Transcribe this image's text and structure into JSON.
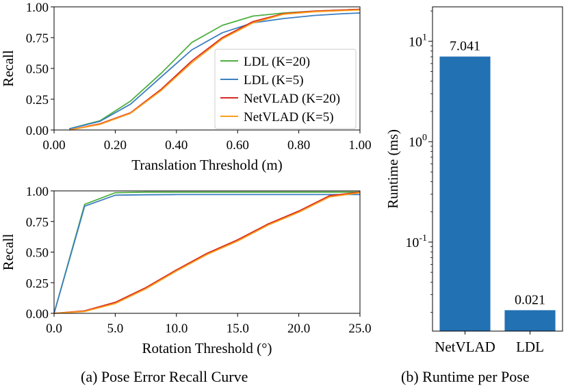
{
  "captions": {
    "a": "(a) Pose Error Recall Curve",
    "b": "(b) Runtime per Pose"
  },
  "chart_data": [
    {
      "type": "line",
      "id": "translation",
      "xlabel": "Translation Threshold (m)",
      "ylabel": "Recall",
      "xlim": [
        0.0,
        1.0
      ],
      "ylim": [
        0.0,
        1.0
      ],
      "xticks": [
        0.0,
        0.2,
        0.4,
        0.6,
        0.8,
        1.0
      ],
      "xtick_labels": [
        "0.00",
        "0.20",
        "0.40",
        "0.60",
        "0.80",
        "1.00"
      ],
      "yticks": [
        0.0,
        0.25,
        0.5,
        0.75,
        1.0
      ],
      "ytick_labels": [
        "0.00",
        "0.25",
        "0.50",
        "0.75",
        "1.00"
      ],
      "legend_position": "center-right",
      "series": [
        {
          "name": "LDL (K=20)",
          "color": "#4daf3f",
          "x": [
            0.05,
            0.15,
            0.25,
            0.35,
            0.45,
            0.55,
            0.65,
            0.75,
            0.85,
            0.95,
            1.0
          ],
          "y": [
            0.01,
            0.075,
            0.235,
            0.46,
            0.71,
            0.85,
            0.925,
            0.95,
            0.965,
            0.975,
            0.98
          ]
        },
        {
          "name": "LDL (K=5)",
          "color": "#3b7ec0",
          "x": [
            0.05,
            0.15,
            0.25,
            0.35,
            0.45,
            0.55,
            0.65,
            0.75,
            0.85,
            0.95,
            1.0
          ],
          "y": [
            0.01,
            0.07,
            0.21,
            0.43,
            0.65,
            0.79,
            0.87,
            0.905,
            0.93,
            0.945,
            0.95
          ]
        },
        {
          "name": "NetVLAD (K=20)",
          "color": "#d62b1f",
          "x": [
            0.05,
            0.15,
            0.25,
            0.35,
            0.45,
            0.55,
            0.65,
            0.75,
            0.85,
            0.95,
            1.0
          ],
          "y": [
            0.0,
            0.05,
            0.14,
            0.33,
            0.56,
            0.75,
            0.88,
            0.945,
            0.965,
            0.975,
            0.98
          ]
        },
        {
          "name": "NetVLAD (K=5)",
          "color": "#ff9e1b",
          "x": [
            0.05,
            0.15,
            0.25,
            0.35,
            0.45,
            0.55,
            0.65,
            0.75,
            0.85,
            0.95,
            1.0
          ],
          "y": [
            0.0,
            0.045,
            0.135,
            0.32,
            0.545,
            0.74,
            0.87,
            0.94,
            0.96,
            0.97,
            0.975
          ]
        }
      ]
    },
    {
      "type": "line",
      "id": "rotation",
      "xlabel": "Rotation Threshold (°)",
      "ylabel": "Recall",
      "xlim": [
        0.0,
        25.0
      ],
      "ylim": [
        0.0,
        1.0
      ],
      "xticks": [
        0.0,
        5.0,
        10.0,
        15.0,
        20.0,
        25.0
      ],
      "xtick_labels": [
        "0.0",
        "5.0",
        "10.0",
        "15.0",
        "20.0",
        "25.0"
      ],
      "yticks": [
        0.0,
        0.25,
        0.5,
        0.75,
        1.0
      ],
      "ytick_labels": [
        "0.00",
        "0.25",
        "0.50",
        "0.75",
        "1.00"
      ],
      "series": [
        {
          "name": "LDL (K=20)",
          "color": "#4daf3f",
          "x": [
            0,
            2.5,
            5,
            7.5,
            10,
            12.5,
            15,
            17.5,
            20,
            22.5,
            25
          ],
          "y": [
            0.0,
            0.89,
            0.985,
            0.99,
            0.99,
            0.99,
            0.99,
            0.99,
            0.99,
            0.99,
            0.99
          ]
        },
        {
          "name": "LDL (K=5)",
          "color": "#3b7ec0",
          "x": [
            0,
            2.5,
            5,
            7.5,
            10,
            12.5,
            15,
            17.5,
            20,
            22.5,
            25
          ],
          "y": [
            0.0,
            0.875,
            0.965,
            0.968,
            0.97,
            0.97,
            0.97,
            0.97,
            0.97,
            0.97,
            0.97
          ]
        },
        {
          "name": "NetVLAD (K=20)",
          "color": "#d62b1f",
          "x": [
            0,
            2.5,
            5,
            7.5,
            10,
            12.5,
            15,
            17.5,
            20,
            22.5,
            25
          ],
          "y": [
            0.0,
            0.02,
            0.09,
            0.21,
            0.355,
            0.49,
            0.6,
            0.73,
            0.835,
            0.96,
            0.99
          ]
        },
        {
          "name": "NetVLAD (K=5)",
          "color": "#ff9e1b",
          "x": [
            0,
            2.5,
            5,
            7.5,
            10,
            12.5,
            15,
            17.5,
            20,
            22.5,
            25
          ],
          "y": [
            0.0,
            0.015,
            0.08,
            0.2,
            0.345,
            0.48,
            0.59,
            0.72,
            0.825,
            0.95,
            0.985
          ]
        }
      ]
    },
    {
      "type": "bar",
      "id": "runtime",
      "yscale": "log",
      "ylabel": "Runtime (ms)",
      "ylim": [
        0.013,
        22
      ],
      "categories": [
        "NetVLAD",
        "LDL"
      ],
      "values": [
        7.041,
        0.021
      ],
      "value_labels": [
        "7.041",
        "0.021"
      ],
      "color": "#2271b3",
      "yticks": [
        {
          "value": 10,
          "base": "10",
          "exp": "1"
        },
        {
          "value": 1,
          "base": "10",
          "exp": "0"
        },
        {
          "value": 0.1,
          "base": "10",
          "exp": "-1"
        }
      ]
    }
  ]
}
